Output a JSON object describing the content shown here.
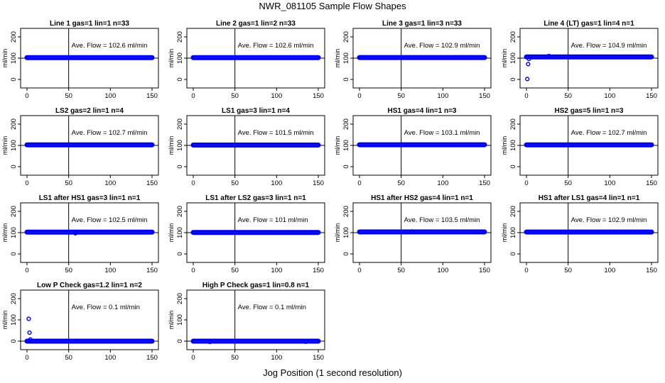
{
  "title": "NWR_081105  Sample Flow Shapes",
  "xlabel": "Jog Position (1 second resolution)",
  "colors": {
    "points": "#0000ee",
    "axes": "#000000"
  },
  "chart_data": [
    {
      "type": "scatter",
      "title": "Line 1 gas=1 lin=1 n=33",
      "ylabel": "ml/min",
      "xlim": [
        0,
        150
      ],
      "ylim": [
        0,
        200
      ],
      "xticks": [
        0,
        50,
        100,
        150
      ],
      "yticks": [
        0,
        100,
        200
      ],
      "vline": 50,
      "ref_line": 100,
      "annotation": {
        "label": "Ave. Flow =",
        "value": "102.6",
        "unit": "ml/min"
      },
      "level": 102.6,
      "outliers": []
    },
    {
      "type": "scatter",
      "title": "Line 2 gas=1 lin=2 n=33",
      "ylabel": "ml/min",
      "xlim": [
        0,
        150
      ],
      "ylim": [
        0,
        200
      ],
      "xticks": [
        0,
        50,
        100,
        150
      ],
      "yticks": [
        0,
        100,
        200
      ],
      "vline": 50,
      "ref_line": 100,
      "annotation": {
        "label": "Ave. Flow =",
        "value": "102.6",
        "unit": "ml/min"
      },
      "level": 102.6,
      "outliers": []
    },
    {
      "type": "scatter",
      "title": "Line 3 gas=1 lin=3 n=33",
      "ylabel": "ml/min",
      "xlim": [
        0,
        150
      ],
      "ylim": [
        0,
        200
      ],
      "xticks": [
        0,
        50,
        100,
        150
      ],
      "yticks": [
        0,
        100,
        200
      ],
      "vline": 50,
      "ref_line": 100,
      "annotation": {
        "label": "Ave. Flow =",
        "value": "102.9",
        "unit": "ml/min"
      },
      "level": 102.9,
      "outliers": []
    },
    {
      "type": "scatter",
      "title": "Line 4 (LT) gas=1 lin=4 n=1",
      "ylabel": "ml/min",
      "xlim": [
        0,
        150
      ],
      "ylim": [
        0,
        200
      ],
      "xticks": [
        0,
        50,
        100,
        150
      ],
      "yticks": [
        0,
        100,
        200
      ],
      "vline": 50,
      "ref_line": 100,
      "annotation": {
        "label": "Ave. Flow =",
        "value": "104.9",
        "unit": "ml/min"
      },
      "level": 106,
      "outliers": [
        [
          1,
          2
        ],
        [
          2,
          72
        ],
        [
          3,
          96
        ],
        [
          5,
          104
        ],
        [
          27,
          110
        ]
      ]
    },
    {
      "type": "scatter",
      "title": "LS2 gas=2 lin=1 n=4",
      "ylabel": "ml/min",
      "xlim": [
        0,
        150
      ],
      "ylim": [
        0,
        200
      ],
      "xticks": [
        0,
        50,
        100,
        150
      ],
      "yticks": [
        0,
        100,
        200
      ],
      "vline": 50,
      "ref_line": 100,
      "annotation": {
        "label": "Ave. Flow =",
        "value": "102.7",
        "unit": "ml/min"
      },
      "level": 102.7,
      "outliers": []
    },
    {
      "type": "scatter",
      "title": "LS1 gas=3 lin=1 n=4",
      "ylabel": "ml/min",
      "xlim": [
        0,
        150
      ],
      "ylim": [
        0,
        200
      ],
      "xticks": [
        0,
        50,
        100,
        150
      ],
      "yticks": [
        0,
        100,
        200
      ],
      "vline": 50,
      "ref_line": 100,
      "annotation": {
        "label": "Ave. Flow =",
        "value": "101.5",
        "unit": "ml/min"
      },
      "level": 101.5,
      "outliers": []
    },
    {
      "type": "scatter",
      "title": "HS1 gas=4 lin=1 n=3",
      "ylabel": "ml/min",
      "xlim": [
        0,
        150
      ],
      "ylim": [
        0,
        200
      ],
      "xticks": [
        0,
        50,
        100,
        150
      ],
      "yticks": [
        0,
        100,
        200
      ],
      "vline": 50,
      "ref_line": 100,
      "annotation": {
        "label": "Ave. Flow =",
        "value": "103.1",
        "unit": "ml/min"
      },
      "level": 103.1,
      "outliers": []
    },
    {
      "type": "scatter",
      "title": "HS2 gas=5 lin=1 n=3",
      "ylabel": "ml/min",
      "xlim": [
        0,
        150
      ],
      "ylim": [
        0,
        200
      ],
      "xticks": [
        0,
        50,
        100,
        150
      ],
      "yticks": [
        0,
        100,
        200
      ],
      "vline": 50,
      "ref_line": 100,
      "annotation": {
        "label": "Ave. Flow =",
        "value": "102.7",
        "unit": "ml/min"
      },
      "level": 102.7,
      "outliers": []
    },
    {
      "type": "scatter",
      "title": "LS1 after HS1 gas=3 lin=1 n=1",
      "ylabel": "ml/min",
      "xlim": [
        0,
        150
      ],
      "ylim": [
        0,
        200
      ],
      "xticks": [
        0,
        50,
        100,
        150
      ],
      "yticks": [
        0,
        100,
        200
      ],
      "vline": 50,
      "ref_line": 100,
      "annotation": {
        "label": "Ave. Flow =",
        "value": "102.5",
        "unit": "ml/min"
      },
      "level": 102.5,
      "outliers": [
        [
          58,
          97
        ]
      ]
    },
    {
      "type": "scatter",
      "title": "LS1 after LS2 gas=3 lin=1 n=1",
      "ylabel": "ml/min",
      "xlim": [
        0,
        150
      ],
      "ylim": [
        0,
        200
      ],
      "xticks": [
        0,
        50,
        100,
        150
      ],
      "yticks": [
        0,
        100,
        200
      ],
      "vline": 50,
      "ref_line": 100,
      "annotation": {
        "label": "Ave. Flow =",
        "value": "101",
        "unit": "ml/min"
      },
      "level": 101,
      "outliers": []
    },
    {
      "type": "scatter",
      "title": "HS1 after HS2 gas=4 lin=1 n=1",
      "ylabel": "ml/min",
      "xlim": [
        0,
        150
      ],
      "ylim": [
        0,
        200
      ],
      "xticks": [
        0,
        50,
        100,
        150
      ],
      "yticks": [
        0,
        100,
        200
      ],
      "vline": 50,
      "ref_line": 100,
      "annotation": {
        "label": "Ave. Flow =",
        "value": "103.5",
        "unit": "ml/min"
      },
      "level": 103.5,
      "outliers": [
        [
          63,
          106
        ]
      ]
    },
    {
      "type": "scatter",
      "title": "HS1 after LS1 gas=4 lin=1 n=1",
      "ylabel": "ml/min",
      "xlim": [
        0,
        150
      ],
      "ylim": [
        0,
        200
      ],
      "xticks": [
        0,
        50,
        100,
        150
      ],
      "yticks": [
        0,
        100,
        200
      ],
      "vline": 50,
      "ref_line": 100,
      "annotation": {
        "label": "Ave. Flow =",
        "value": "102.9",
        "unit": "ml/min"
      },
      "level": 102.9,
      "outliers": []
    },
    {
      "type": "scatter",
      "title": "Low P Check gas=1.2 lin=1 n=2",
      "ylabel": "ml/min",
      "xlim": [
        0,
        150
      ],
      "ylim": [
        0,
        200
      ],
      "xticks": [
        0,
        50,
        100,
        150
      ],
      "yticks": [
        0,
        100,
        200
      ],
      "vline": 50,
      "ref_line": 0,
      "annotation": {
        "label": "Ave. Flow =",
        "value": "0.1",
        "unit": "ml/min"
      },
      "level": 0.1,
      "outliers": [
        [
          2,
          105
        ],
        [
          3,
          40
        ],
        [
          4,
          8
        ]
      ]
    },
    {
      "type": "scatter",
      "title": "High P Check gas=1 lin=0.8 n=1",
      "ylabel": "ml/min",
      "xlim": [
        0,
        150
      ],
      "ylim": [
        0,
        200
      ],
      "xticks": [
        0,
        50,
        100,
        150
      ],
      "yticks": [
        0,
        100,
        200
      ],
      "vline": 50,
      "ref_line": 0,
      "annotation": {
        "label": "Ave. Flow =",
        "value": "0.1",
        "unit": "ml/min"
      },
      "level": 0.1,
      "outliers": [
        [
          20,
          -4
        ],
        [
          135,
          -3
        ]
      ]
    }
  ]
}
